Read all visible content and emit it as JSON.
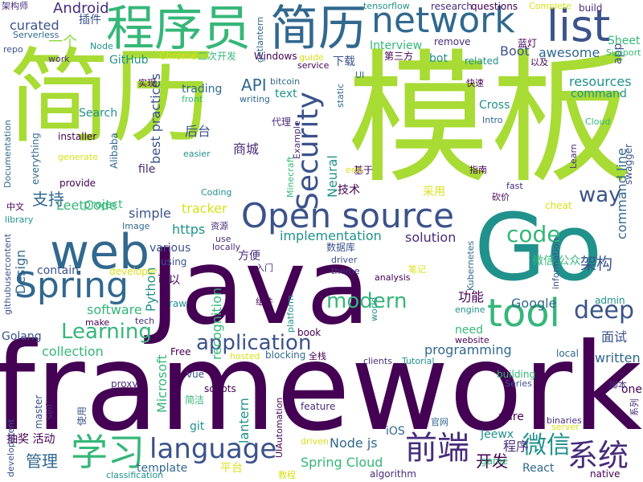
{
  "palette": {
    "purple": "#440154",
    "indigo": "#472d7b",
    "blue": "#3b528b",
    "steel": "#31688e",
    "teal": "#21918c",
    "green": "#35b779",
    "lime": "#90d743",
    "yellowgreen": "#a8db34",
    "yellow": "#d8e219"
  },
  "words": [
    {
      "text": "framework",
      "color": "#440154"
    },
    {
      "text": "Java",
      "color": "#440154"
    },
    {
      "text": "简历",
      "color": "#a8db34"
    },
    {
      "text": "模板",
      "color": "#a8db34"
    },
    {
      "text": "Go",
      "color": "#21918c"
    },
    {
      "text": "程序员",
      "color": "#35b779"
    },
    {
      "text": "简历",
      "color": "#31688e"
    },
    {
      "text": "network",
      "color": "#31688e"
    },
    {
      "text": "list",
      "color": "#3b528b"
    },
    {
      "text": "web",
      "color": "#31688e"
    },
    {
      "text": "Open source",
      "color": "#3b528b"
    },
    {
      "text": "Spring",
      "color": "#31688e"
    },
    {
      "text": "tool",
      "color": "#35b779"
    },
    {
      "text": "Security",
      "color": "#3b528b"
    },
    {
      "text": "language",
      "color": "#3b528b"
    },
    {
      "text": "application",
      "color": "#3b528b"
    },
    {
      "text": "modern",
      "color": "#35b779"
    },
    {
      "text": "Learning",
      "color": "#35b779"
    },
    {
      "text": "deep",
      "color": "#3b528b"
    },
    {
      "text": "学习",
      "color": "#35b779"
    },
    {
      "text": "前端",
      "color": "#472d7b"
    },
    {
      "text": "系统",
      "color": "#472d7b"
    },
    {
      "text": "微信",
      "color": "#21918c"
    },
    {
      "text": "way",
      "color": "#3b528b"
    },
    {
      "text": "code",
      "color": "#35b779"
    },
    {
      "text": "Android",
      "color": "#472d7b"
    },
    {
      "text": "API",
      "color": "#31688e"
    },
    {
      "text": "Design",
      "color": "#31688e"
    },
    {
      "text": "Neural",
      "color": "#21918c"
    },
    {
      "text": "recognition",
      "color": "#35b779"
    },
    {
      "text": "lantern",
      "color": "#21918c"
    },
    {
      "text": "Python",
      "color": "#21918c"
    },
    {
      "text": "implementation",
      "color": "#21918c"
    },
    {
      "text": "resources",
      "color": "#21918c"
    },
    {
      "text": "programming",
      "color": "#31688e"
    },
    {
      "text": "Node js",
      "color": "#31688e"
    },
    {
      "text": "Spring Cloud",
      "color": "#35b779"
    },
    {
      "text": "管理",
      "color": "#31688e"
    },
    {
      "text": "开发",
      "color": "#440154"
    },
    {
      "text": "支持",
      "color": "#31688e"
    },
    {
      "text": "LeetCode",
      "color": "#35b779"
    },
    {
      "text": "simple",
      "color": "#3b528b"
    },
    {
      "text": "https",
      "color": "#21918c"
    },
    {
      "text": "software",
      "color": "#35b779"
    },
    {
      "text": "collection",
      "color": "#35b779"
    },
    {
      "text": "Microsoft",
      "color": "#35b779"
    },
    {
      "text": "awesome",
      "color": "#31688e"
    },
    {
      "text": "架构",
      "color": "#3b528b"
    },
    {
      "text": "功能",
      "color": "#440154"
    },
    {
      "text": "Google",
      "color": "#31688e"
    },
    {
      "text": "Boot",
      "color": "#3b528b"
    },
    {
      "text": "curated",
      "color": "#3b528b"
    },
    {
      "text": "一个",
      "color": "#90d743"
    },
    {
      "text": "Interview",
      "color": "#35b779"
    },
    {
      "text": "bot",
      "color": "#21918c"
    },
    {
      "text": "面试",
      "color": "#3b528b"
    },
    {
      "text": "written",
      "color": "#31688e"
    },
    {
      "text": "程序",
      "color": "#472d7b"
    },
    {
      "text": "command line",
      "color": "#31688e"
    },
    {
      "text": "tracker",
      "color": "#d8e219"
    },
    {
      "text": "solution",
      "color": "#472d7b"
    },
    {
      "text": "商城",
      "color": "#472d7b"
    },
    {
      "text": "后台",
      "color": "#3b528b"
    },
    {
      "text": "best practices",
      "color": "#3b528b"
    },
    {
      "text": "app",
      "color": "#3b528b"
    },
    {
      "text": "Sheet",
      "color": "#35b779"
    },
    {
      "text": "下载",
      "color": "#3b528b"
    },
    {
      "text": "GitHub",
      "color": "#21918c"
    },
    {
      "text": "Chrome",
      "color": "#d8e219"
    },
    {
      "text": "二次开发",
      "color": "#35b779"
    },
    {
      "text": "Windows",
      "color": "#440154"
    },
    {
      "text": "project",
      "color": "#35b779"
    },
    {
      "text": "contain",
      "color": "#3b528b"
    },
    {
      "text": "raw",
      "color": "#21918c"
    },
    {
      "text": "Golang",
      "color": "#3b528b"
    },
    {
      "text": "Free",
      "color": "#440154"
    },
    {
      "text": "git",
      "color": "#21918c"
    },
    {
      "text": "pure",
      "color": "#440154"
    },
    {
      "text": "template",
      "color": "#31688e"
    },
    {
      "text": "平台",
      "color": "#d8e219"
    },
    {
      "text": "React",
      "color": "#31688e"
    },
    {
      "text": "iOS",
      "color": "#31688e"
    },
    {
      "text": "微信 公众",
      "color": "#35b779"
    },
    {
      "text": "技术",
      "color": "#440154"
    },
    {
      "text": "采用",
      "color": "#d8e219"
    },
    {
      "text": "可以",
      "color": "#440154"
    },
    {
      "text": "方便",
      "color": "#472d7b"
    },
    {
      "text": "file",
      "color": "#472d7b"
    },
    {
      "text": "various",
      "color": "#3b528b"
    },
    {
      "text": "using",
      "color": "#3b528b"
    },
    {
      "text": "text",
      "color": "#21918c"
    },
    {
      "text": "Cross",
      "color": "#21918c"
    },
    {
      "text": "Jeewx",
      "color": "#21918c"
    },
    {
      "text": "one",
      "color": "#440154"
    },
    {
      "text": "need",
      "color": "#35b779"
    },
    {
      "text": "cheat",
      "color": "#d8e219"
    },
    {
      "text": "基于",
      "color": "#440154"
    },
    {
      "text": "native",
      "color": "#440154"
    },
    {
      "text": "scripts",
      "color": "#440154"
    },
    {
      "text": "feature",
      "color": "#472d7b"
    },
    {
      "text": "proxy",
      "color": "#472d7b"
    },
    {
      "text": "vue",
      "color": "#3b528b"
    },
    {
      "text": "book",
      "color": "#440154"
    },
    {
      "text": "local",
      "color": "#31688e"
    },
    {
      "text": "building",
      "color": "#35b779"
    },
    {
      "text": "admin",
      "color": "#21918c"
    },
    {
      "text": "抽奖 活动",
      "color": "#440154"
    },
    {
      "text": "简洁",
      "color": "#35b779"
    },
    {
      "text": "game",
      "color": "#35b779"
    },
    {
      "text": "algorithm",
      "color": "#472d7b"
    },
    {
      "text": "Series",
      "color": "#3b528b"
    },
    {
      "text": "remove",
      "color": "#472d7b"
    },
    {
      "text": "Complete",
      "color": "#d8e219"
    },
    {
      "text": "research",
      "color": "#472d7b"
    },
    {
      "text": "questions",
      "color": "#440154"
    },
    {
      "text": "build",
      "color": "#472d7b"
    },
    {
      "text": "tensorflow",
      "color": "#21918c"
    },
    {
      "text": "Support",
      "color": "#35b779"
    },
    {
      "text": "蓝灯",
      "color": "#440154"
    },
    {
      "text": "以及",
      "color": "#440154"
    },
    {
      "text": "第三方",
      "color": "#440154"
    },
    {
      "text": "related",
      "color": "#21918c"
    },
    {
      "text": "快速",
      "color": "#440154"
    },
    {
      "text": "trading",
      "color": "#31688e"
    },
    {
      "text": "bitcoin",
      "color": "#31688e"
    },
    {
      "text": "writing",
      "color": "#31688e"
    },
    {
      "text": "front",
      "color": "#35b779"
    },
    {
      "text": "guide",
      "color": "#d8e219"
    },
    {
      "text": "service",
      "color": "#440154"
    },
    {
      "text": "Search",
      "color": "#21918c"
    },
    {
      "text": "command",
      "color": "#21918c"
    },
    {
      "text": "Intro",
      "color": "#31688e"
    },
    {
      "text": "Cloud",
      "color": "#35b779"
    },
    {
      "text": "架构师",
      "color": "#472d7b"
    },
    {
      "text": "插件",
      "color": "#3b528b"
    },
    {
      "text": "repo",
      "color": "#3b528b"
    },
    {
      "text": "work",
      "color": "#472d7b"
    },
    {
      "text": "Serverless",
      "color": "#31688e"
    },
    {
      "text": "Node",
      "color": "#21918c"
    },
    {
      "text": "实现",
      "color": "#440154"
    },
    {
      "text": "Alibaba",
      "color": "#31688e"
    },
    {
      "text": "installer",
      "color": "#440154"
    },
    {
      "text": "everything",
      "color": "#31688e"
    },
    {
      "text": "generate",
      "color": "#d8e219"
    },
    {
      "text": "provide",
      "color": "#440154"
    },
    {
      "text": "Documentation",
      "color": "#31688e"
    },
    {
      "text": "中文",
      "color": "#440154"
    },
    {
      "text": "library",
      "color": "#21918c"
    },
    {
      "text": "githubusercontent",
      "color": "#3b528b"
    },
    {
      "text": "代理",
      "color": "#472d7b"
    },
    {
      "text": "Example",
      "color": "#472d7b"
    },
    {
      "text": "Minecraft",
      "color": "#35b779"
    },
    {
      "text": "easier",
      "color": "#21918c"
    },
    {
      "text": "Coding",
      "color": "#21918c"
    },
    {
      "text": "Image",
      "color": "#31688e"
    },
    {
      "text": "资源",
      "color": "#472d7b"
    },
    {
      "text": "use",
      "color": "#472d7b"
    },
    {
      "text": "locally",
      "color": "#472d7b"
    },
    {
      "text": "数据库",
      "color": "#3b528b"
    },
    {
      "text": "driver",
      "color": "#3b528b"
    },
    {
      "text": "入门",
      "color": "#472d7b"
    },
    {
      "text": "theme",
      "color": "#472d7b"
    },
    {
      "text": "developer",
      "color": "#d8e219"
    },
    {
      "text": "analysis",
      "color": "#440154"
    },
    {
      "text": "笔记",
      "color": "#d8e219"
    },
    {
      "text": "组件",
      "color": "#440154"
    },
    {
      "text": "platform",
      "color": "#21918c"
    },
    {
      "text": "world",
      "color": "#21918c"
    },
    {
      "text": "engine",
      "color": "#21918c"
    },
    {
      "text": "information",
      "color": "#3b528b"
    },
    {
      "text": "Kubernetes",
      "color": "#31688e"
    },
    {
      "text": "make",
      "color": "#440154"
    },
    {
      "text": "tech",
      "color": "#472d7b"
    },
    {
      "text": "全栈",
      "color": "#440154"
    },
    {
      "text": "hosted",
      "color": "#d8e219"
    },
    {
      "text": "blocking",
      "color": "#31688e"
    },
    {
      "text": "clients",
      "color": "#472d7b"
    },
    {
      "text": "Tutorial",
      "color": "#21918c"
    },
    {
      "text": "website",
      "color": "#440154"
    },
    {
      "text": "master",
      "color": "#3b528b"
    },
    {
      "text": "self",
      "color": "#472d7b"
    },
    {
      "text": "使用",
      "color": "#3b528b"
    },
    {
      "text": "development",
      "color": "#3b528b"
    },
    {
      "text": "UIAutomation",
      "color": "#440154"
    },
    {
      "text": "driven",
      "color": "#d8e219"
    },
    {
      "text": "官网",
      "color": "#31688e"
    },
    {
      "text": "server",
      "color": "#d8e219"
    },
    {
      "text": "binaries",
      "color": "#472d7b"
    },
    {
      "text": "脚本",
      "color": "#472d7b"
    },
    {
      "text": "classification",
      "color": "#21918c"
    },
    {
      "text": "教程",
      "color": "#d8e219"
    },
    {
      "text": "系列",
      "color": "#472d7b"
    },
    {
      "text": "getlantern",
      "color": "#31688e"
    },
    {
      "text": "UI",
      "color": "#31688e"
    },
    {
      "text": "static",
      "color": "#31688e"
    },
    {
      "text": "Learn",
      "color": "#472d7b"
    },
    {
      "text": "指南",
      "color": "#440154"
    },
    {
      "text": "end",
      "color": "#d8e219"
    },
    {
      "text": "fast",
      "color": "#472d7b"
    },
    {
      "text": "砍价",
      "color": "#440154"
    },
    {
      "text": "swagger",
      "color": "#3b528b"
    }
  ]
}
